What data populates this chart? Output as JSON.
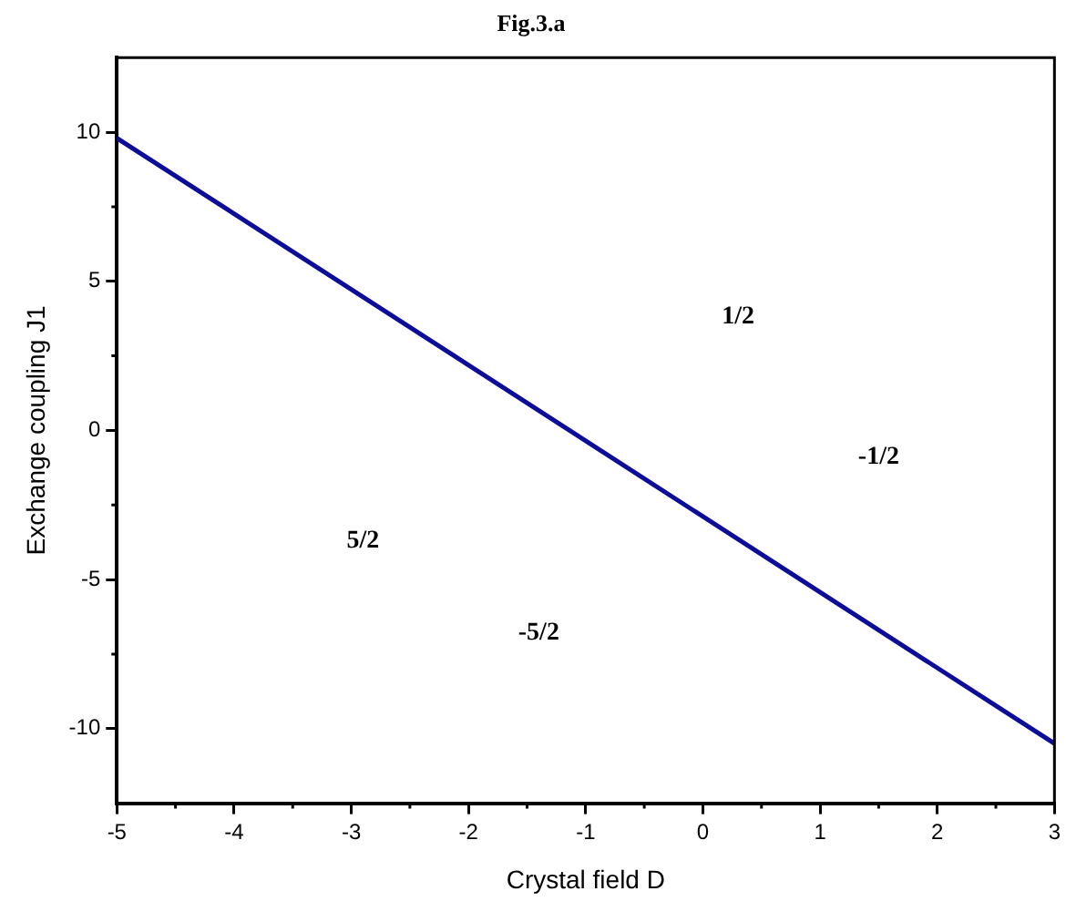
{
  "chart_data": {
    "type": "line",
    "title": "Fig.3.a",
    "xlabel": "Crystal field D",
    "ylabel": "Exchange coupling J1",
    "x": [
      -5,
      3
    ],
    "series": [
      {
        "color": "#0d0d99",
        "values": [
          9.8,
          -10.5
        ]
      }
    ],
    "xlim": [
      -5,
      3
    ],
    "xticks": [
      -5,
      -4,
      -3,
      -2,
      -1,
      0,
      1,
      2,
      3
    ],
    "ylim": [
      -12.5,
      12.5
    ],
    "yticks": [
      -10,
      -5,
      0,
      5,
      10
    ],
    "grid": false,
    "legend": false,
    "marker": "none",
    "line_style": "solid",
    "annotations": [
      "1/2",
      "-1/2",
      "5/2",
      "-5/2"
    ]
  }
}
